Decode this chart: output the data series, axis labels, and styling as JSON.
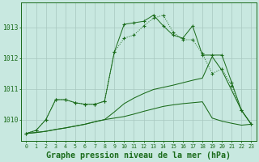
{
  "title": "Graphe pression niveau de la mer (hPa)",
  "hours": [
    0,
    1,
    2,
    3,
    4,
    5,
    6,
    7,
    8,
    9,
    10,
    11,
    12,
    13,
    14,
    15,
    16,
    17,
    18,
    19,
    20,
    21,
    22,
    23
  ],
  "line_dotted_markers": [
    1009.55,
    1009.65,
    1010.0,
    1010.65,
    1010.65,
    1010.55,
    1010.5,
    1010.5,
    1010.6,
    1012.2,
    1012.65,
    1012.75,
    1013.05,
    1013.3,
    1013.4,
    1012.85,
    1012.6,
    1012.6,
    1012.15,
    1011.5,
    1011.65,
    1011.1,
    1010.3,
    1009.85
  ],
  "line_solid_markers": [
    1009.55,
    1009.65,
    1010.0,
    1010.65,
    1010.65,
    1010.55,
    1010.5,
    1010.5,
    1010.6,
    1012.2,
    1013.1,
    1013.15,
    1013.2,
    1013.4,
    1013.05,
    1012.75,
    1012.65,
    1013.05,
    1012.1,
    1012.1,
    1012.1,
    1011.2,
    1010.3,
    1009.85
  ],
  "line_straight_upper": [
    1009.55,
    1009.58,
    1009.62,
    1009.68,
    1009.73,
    1009.79,
    1009.85,
    1009.93,
    1010.0,
    1010.25,
    1010.52,
    1010.7,
    1010.85,
    1010.98,
    1011.05,
    1011.12,
    1011.2,
    1011.28,
    1011.35,
    1012.05,
    1011.6,
    1010.95,
    1010.3,
    1009.85
  ],
  "line_straight_lower": [
    1009.55,
    1009.58,
    1009.62,
    1009.68,
    1009.73,
    1009.79,
    1009.85,
    1009.93,
    1010.0,
    1010.05,
    1010.1,
    1010.18,
    1010.27,
    1010.35,
    1010.43,
    1010.48,
    1010.52,
    1010.55,
    1010.58,
    1010.05,
    1009.95,
    1009.88,
    1009.82,
    1009.85
  ],
  "ylim": [
    1009.3,
    1013.8
  ],
  "yticks": [
    1010,
    1011,
    1012,
    1013
  ],
  "line_color": "#1a6b1a",
  "bg_color": "#c8e8e0",
  "grid_color": "#a8c8c0"
}
